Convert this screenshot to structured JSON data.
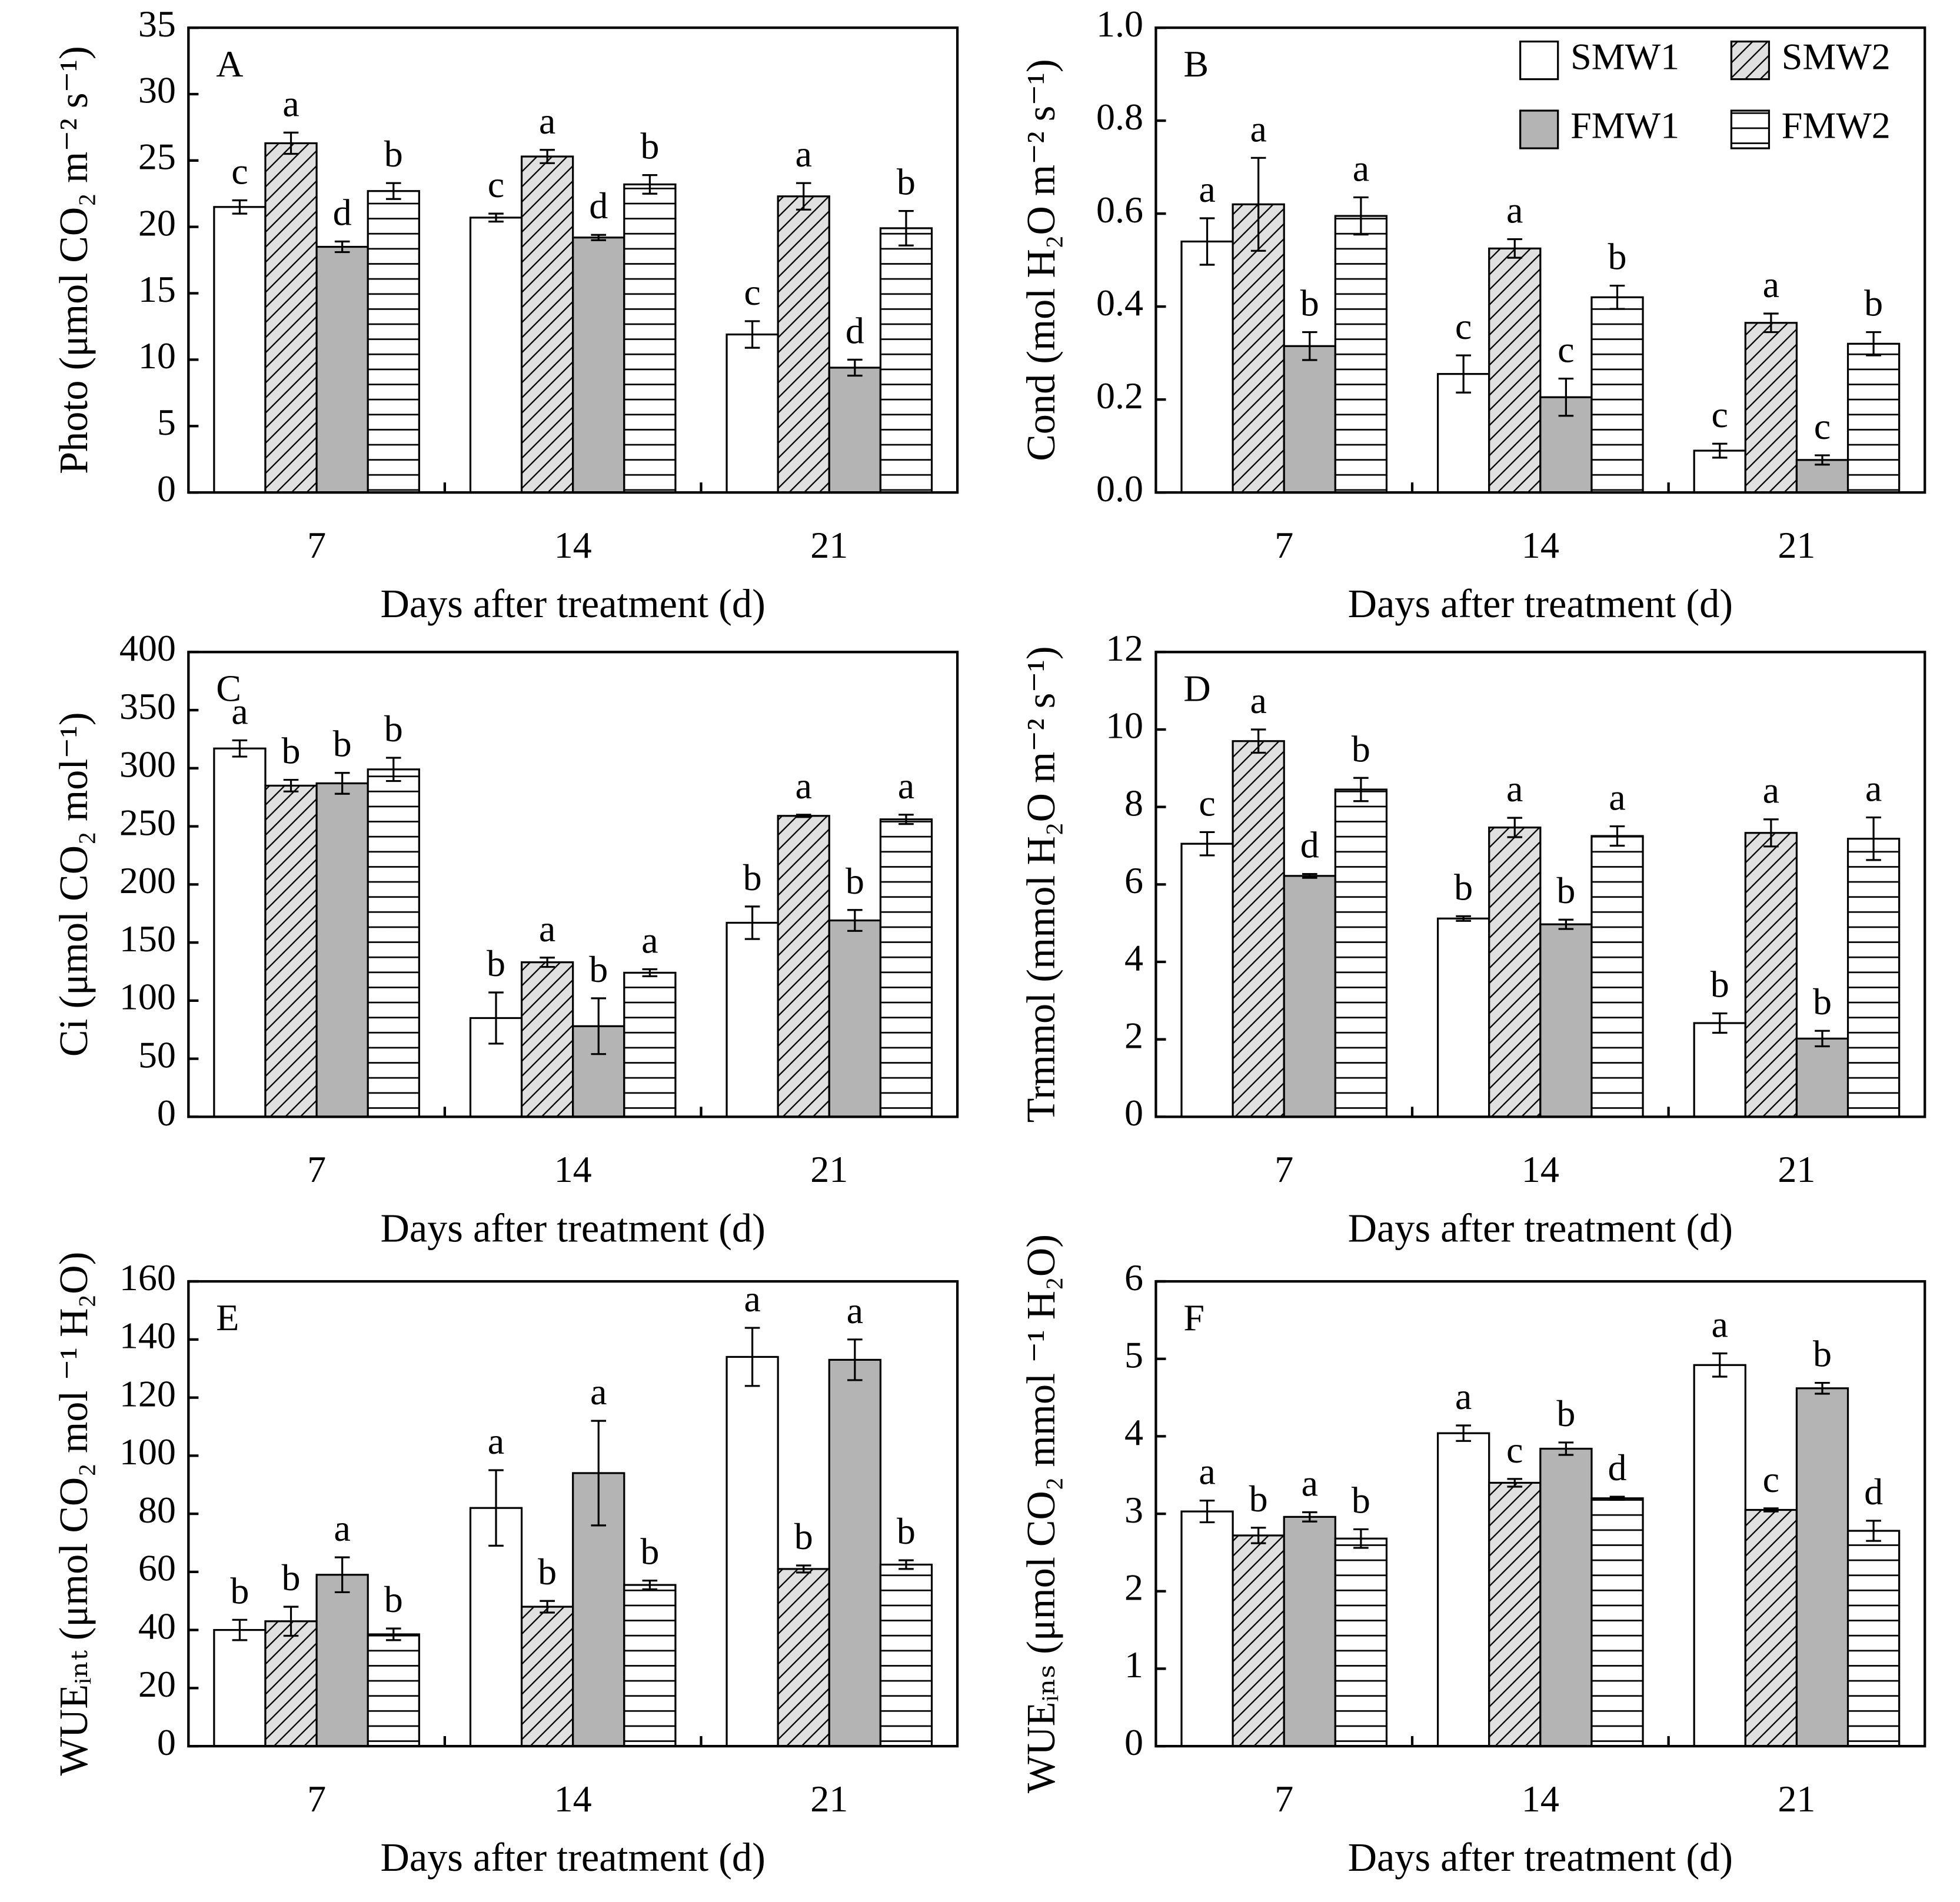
{
  "chart_data": [
    {
      "type": "bar",
      "panel_label": "A",
      "ylabel": "Photo (μmol CO₂ m⁻² s⁻¹)",
      "xlabel": "Days after treatment (d)",
      "categories": [
        "7",
        "14",
        "21"
      ],
      "ylim": [
        0,
        35
      ],
      "yticks": [
        0,
        5,
        10,
        15,
        20,
        25,
        30,
        35
      ],
      "series": [
        {
          "color": "#ffffff",
          "pattern": "none",
          "values": [
            21.5,
            20.7,
            11.9
          ],
          "errors": [
            0.5,
            0.3,
            1.0
          ],
          "labels": [
            "c",
            "c",
            "c"
          ]
        },
        {
          "color": "#e0e0e0",
          "pattern": "diagonal",
          "values": [
            26.3,
            25.3,
            22.3
          ],
          "errors": [
            0.8,
            0.5,
            1.0
          ],
          "labels": [
            "a",
            "a",
            "a"
          ]
        },
        {
          "color": "#b4b4b4",
          "pattern": "none",
          "values": [
            18.5,
            19.2,
            9.4
          ],
          "errors": [
            0.4,
            0.2,
            0.6
          ],
          "labels": [
            "d",
            "d",
            "d"
          ]
        },
        {
          "color": "#ffffff",
          "pattern": "horizontal",
          "values": [
            22.7,
            23.2,
            19.9
          ],
          "errors": [
            0.6,
            0.7,
            1.3
          ],
          "labels": [
            "b",
            "b",
            "b"
          ]
        }
      ]
    },
    {
      "type": "bar",
      "panel_label": "B",
      "ylabel": "Cond (mol H₂O m⁻² s⁻¹)",
      "xlabel": "Days after treatment (d)",
      "categories": [
        "7",
        "14",
        "21"
      ],
      "ylim": [
        0,
        1
      ],
      "yticks": [
        {
          "value": 0,
          "label": "0.0"
        },
        0.2,
        0.4,
        0.6,
        0.8,
        {
          "value": 1,
          "label": "1.0"
        }
      ],
      "legend": "upper right",
      "series": [
        {
          "name": "SMW1",
          "color": "#ffffff",
          "pattern": "none",
          "values": [
            0.54,
            0.255,
            0.09
          ],
          "errors": [
            0.05,
            0.04,
            0.015
          ],
          "labels": [
            "a",
            "c",
            "c"
          ]
        },
        {
          "name": "SMW2",
          "color": "#e0e0e0",
          "pattern": "diagonal",
          "values": [
            0.62,
            0.525,
            0.365
          ],
          "errors": [
            0.1,
            0.02,
            0.02
          ],
          "labels": [
            "a",
            "a",
            "a"
          ]
        },
        {
          "name": "FMW1",
          "color": "#b4b4b4",
          "pattern": "none",
          "values": [
            0.315,
            0.205,
            0.07
          ],
          "errors": [
            0.03,
            0.04,
            0.01
          ],
          "labels": [
            "b",
            "c",
            "c"
          ]
        },
        {
          "name": "FMW2",
          "color": "#ffffff",
          "pattern": "horizontal",
          "values": [
            0.595,
            0.42,
            0.32
          ],
          "errors": [
            0.04,
            0.025,
            0.025
          ],
          "labels": [
            "a",
            "b",
            "b"
          ]
        }
      ]
    },
    {
      "type": "bar",
      "panel_label": "C",
      "ylabel": "Ci (μmol CO₂ mol⁻¹)",
      "xlabel": "Days after treatment (d)",
      "categories": [
        "7",
        "14",
        "21"
      ],
      "ylim": [
        0,
        400
      ],
      "yticks": [
        0,
        50,
        100,
        150,
        200,
        250,
        300,
        350,
        400
      ],
      "series": [
        {
          "color": "#ffffff",
          "pattern": "none",
          "values": [
            317,
            85,
            167
          ],
          "errors": [
            7,
            22,
            14
          ],
          "labels": [
            "a",
            "b",
            "b"
          ]
        },
        {
          "color": "#e0e0e0",
          "pattern": "diagonal",
          "values": [
            285,
            133,
            259
          ],
          "errors": [
            5,
            4,
            1
          ],
          "labels": [
            "b",
            "a",
            "a"
          ]
        },
        {
          "color": "#b4b4b4",
          "pattern": "none",
          "values": [
            287,
            78,
            169
          ],
          "errors": [
            9,
            24,
            9
          ],
          "labels": [
            "b",
            "b",
            "b"
          ]
        },
        {
          "color": "#ffffff",
          "pattern": "horizontal",
          "values": [
            299,
            124,
            256
          ],
          "errors": [
            10,
            3,
            4
          ],
          "labels": [
            "b",
            "a",
            "a"
          ]
        }
      ]
    },
    {
      "type": "bar",
      "panel_label": "D",
      "ylabel": "Trmmol (mmol H₂O m⁻² s⁻¹)",
      "xlabel": "Days after treatment (d)",
      "categories": [
        "7",
        "14",
        "21"
      ],
      "ylim": [
        0,
        12
      ],
      "yticks": [
        0,
        2,
        4,
        6,
        8,
        10,
        12
      ],
      "series": [
        {
          "color": "#ffffff",
          "pattern": "none",
          "values": [
            7.05,
            5.12,
            2.42
          ],
          "errors": [
            0.3,
            0.06,
            0.25
          ],
          "labels": [
            "c",
            "b",
            "b"
          ]
        },
        {
          "color": "#e0e0e0",
          "pattern": "diagonal",
          "values": [
            9.7,
            7.47,
            7.33
          ],
          "errors": [
            0.3,
            0.25,
            0.35
          ],
          "labels": [
            "a",
            "a",
            "a"
          ]
        },
        {
          "color": "#b4b4b4",
          "pattern": "none",
          "values": [
            6.22,
            4.97,
            2.02
          ],
          "errors": [
            0.05,
            0.12,
            0.2
          ],
          "labels": [
            "d",
            "b",
            "b"
          ]
        },
        {
          "color": "#ffffff",
          "pattern": "horizontal",
          "values": [
            8.45,
            7.25,
            7.18
          ],
          "errors": [
            0.3,
            0.25,
            0.55
          ],
          "labels": [
            "b",
            "a",
            "a"
          ]
        }
      ]
    },
    {
      "type": "bar",
      "panel_label": "E",
      "ylabel": "WUEᵢₙₜ (μmol CO₂ mol ⁻¹ H₂O)",
      "xlabel": "Days after treatment (d)",
      "categories": [
        "7",
        "14",
        "21"
      ],
      "ylim": [
        0,
        160
      ],
      "yticks": [
        0,
        20,
        40,
        60,
        80,
        100,
        120,
        140,
        160
      ],
      "series": [
        {
          "color": "#ffffff",
          "pattern": "none",
          "values": [
            40,
            82,
            134
          ],
          "errors": [
            3.5,
            13,
            10
          ],
          "labels": [
            "b",
            "a",
            "a"
          ]
        },
        {
          "color": "#e0e0e0",
          "pattern": "diagonal",
          "values": [
            43,
            48,
            61
          ],
          "errors": [
            5,
            2,
            1.2
          ],
          "labels": [
            "b",
            "b",
            "b"
          ]
        },
        {
          "color": "#b4b4b4",
          "pattern": "none",
          "values": [
            59,
            94,
            133
          ],
          "errors": [
            6,
            18,
            7
          ],
          "labels": [
            "a",
            "a",
            "a"
          ]
        },
        {
          "color": "#ffffff",
          "pattern": "horizontal",
          "values": [
            38.5,
            55.5,
            62.5
          ],
          "errors": [
            2,
            1.5,
            1.5
          ],
          "labels": [
            "b",
            "b",
            "b"
          ]
        }
      ]
    },
    {
      "type": "bar",
      "panel_label": "F",
      "ylabel": "WUEᵢₙₛ (μmol CO₂ mmol ⁻¹ H₂O)",
      "xlabel": "Days after treatment (d)",
      "categories": [
        "7",
        "14",
        "21"
      ],
      "ylim": [
        0,
        6
      ],
      "yticks": [
        0,
        1,
        2,
        3,
        4,
        5,
        6
      ],
      "series": [
        {
          "color": "#ffffff",
          "pattern": "none",
          "values": [
            3.03,
            4.04,
            4.92
          ],
          "errors": [
            0.14,
            0.1,
            0.15
          ],
          "labels": [
            "a",
            "a",
            "a"
          ]
        },
        {
          "color": "#e0e0e0",
          "pattern": "diagonal",
          "values": [
            2.72,
            3.4,
            3.05
          ],
          "errors": [
            0.1,
            0.05,
            0.02
          ],
          "labels": [
            "b",
            "c",
            "c"
          ]
        },
        {
          "color": "#b4b4b4",
          "pattern": "none",
          "values": [
            2.96,
            3.84,
            4.62
          ],
          "errors": [
            0.06,
            0.08,
            0.07
          ],
          "labels": [
            "a",
            "b",
            "b"
          ]
        },
        {
          "color": "#ffffff",
          "pattern": "horizontal",
          "values": [
            2.68,
            3.2,
            2.78
          ],
          "errors": [
            0.12,
            0.02,
            0.13
          ],
          "labels": [
            "b",
            "d",
            "d"
          ]
        }
      ]
    }
  ]
}
